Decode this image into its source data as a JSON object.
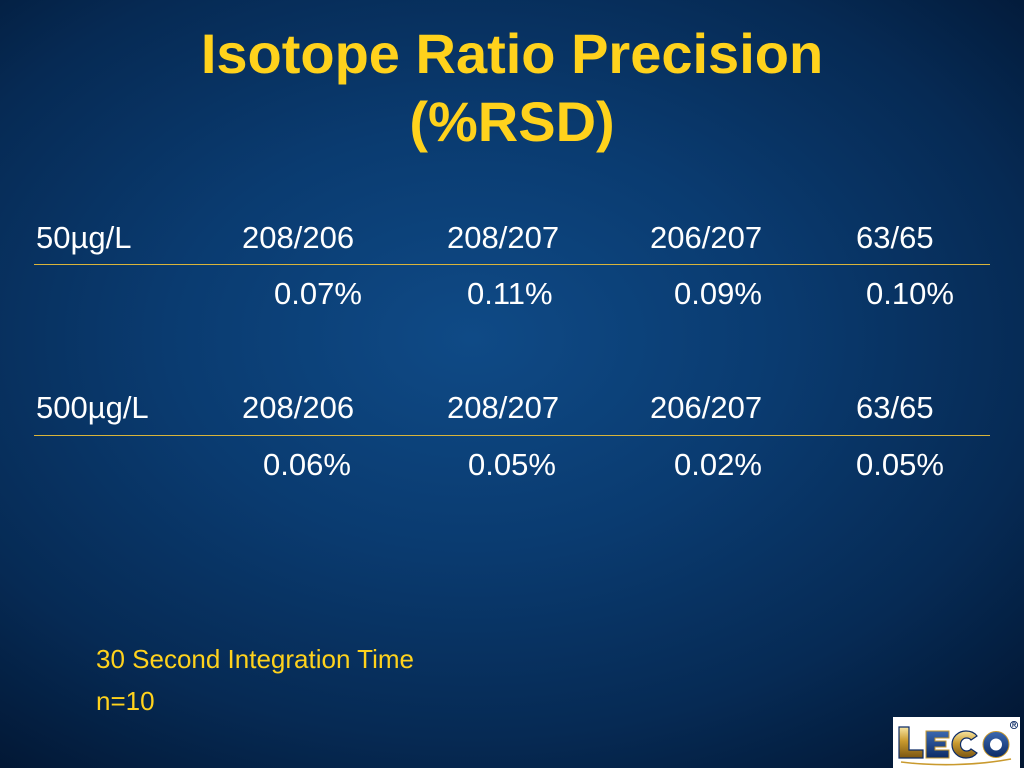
{
  "slide": {
    "title_line1": "Isotope Ratio Precision",
    "title_line2": "(%RSD)"
  },
  "table": {
    "sections": [
      {
        "concentration": "50µg/L",
        "ratios": [
          "208/206",
          "208/207",
          "206/207",
          "63/65"
        ],
        "values": [
          "0.07%",
          "0.11%",
          "0.09%",
          "0.10%"
        ]
      },
      {
        "concentration": "500µg/L",
        "ratios": [
          "208/206",
          "208/207",
          "206/207",
          "63/65"
        ],
        "values": [
          "0.06%",
          "0.05%",
          "0.02%",
          "0.05%"
        ]
      }
    ]
  },
  "notes": {
    "line1": "30 Second Integration Time",
    "line2": "n=10"
  },
  "logo": {
    "text": "LECO",
    "registered_mark": "®"
  },
  "colors": {
    "title": "#ffd21c",
    "body_text": "#ffffff",
    "rule": "#d9b43a",
    "background_center": "#0f4a86",
    "background_edge": "#021632"
  }
}
